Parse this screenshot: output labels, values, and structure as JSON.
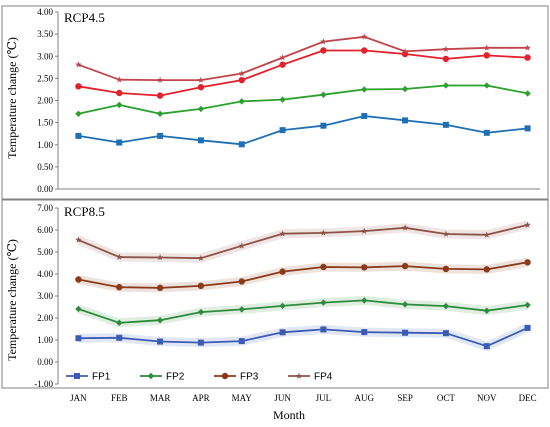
{
  "chart_data": {
    "shared": {
      "categories": [
        "JAN",
        "FEB",
        "MAR",
        "APR",
        "MAY",
        "JUN",
        "JUL",
        "AUG",
        "SEP",
        "OCT",
        "NOV",
        "DEC"
      ],
      "xlabel": "Month",
      "ylabel": "Temperature change (℃)",
      "legend": {
        "placement": "bottom-left inside lower panel",
        "entries": [
          "FP1",
          "FP2",
          "FP3",
          "FP4"
        ]
      }
    },
    "panels": [
      {
        "type": "line",
        "label": "RCP4.5",
        "ylim": [
          0.0,
          4.0
        ],
        "yticks": [
          "0.00",
          "0.50",
          "1.00",
          "1.50",
          "2.00",
          "2.50",
          "3.00",
          "3.50",
          "4.00"
        ],
        "ytick_values": [
          0,
          0.5,
          1,
          1.5,
          2,
          2.5,
          3,
          3.5,
          4
        ],
        "series": [
          {
            "name": "FP1",
            "color": "#1f6fb5",
            "marker": "square",
            "values": [
              1.2,
              1.05,
              1.2,
              1.1,
              1.01,
              1.33,
              1.43,
              1.65,
              1.55,
              1.45,
              1.27,
              1.37
            ]
          },
          {
            "name": "FP2",
            "color": "#2ca02c",
            "marker": "diamond",
            "values": [
              1.7,
              1.9,
              1.7,
              1.81,
              1.98,
              2.02,
              2.13,
              2.25,
              2.26,
              2.34,
              2.34,
              2.16
            ]
          },
          {
            "name": "FP3",
            "color": "#e3212b",
            "marker": "circle",
            "values": [
              2.32,
              2.17,
              2.11,
              2.3,
              2.46,
              2.81,
              3.13,
              3.13,
              3.05,
              2.94,
              3.02,
              2.97
            ]
          },
          {
            "name": "FP4",
            "color": "#c0454a",
            "marker": "star",
            "values": [
              2.81,
              2.47,
              2.46,
              2.46,
              2.61,
              2.97,
              3.33,
              3.44,
              3.11,
              3.16,
              3.19,
              3.19
            ]
          }
        ]
      },
      {
        "type": "line",
        "label": "RCP8.5",
        "ylim": [
          -1.0,
          7.0
        ],
        "yticks": [
          "-1.00",
          "0.00",
          "1.00",
          "2.00",
          "3.00",
          "4.00",
          "5.00",
          "6.00",
          "7.00"
        ],
        "ytick_values": [
          -1,
          0,
          1,
          2,
          3,
          4,
          5,
          6,
          7
        ],
        "series": [
          {
            "name": "FP1",
            "color": "#3b5bb5",
            "marker": "square",
            "values": [
              1.08,
              1.1,
              0.93,
              0.88,
              0.95,
              1.35,
              1.48,
              1.36,
              1.33,
              1.31,
              0.72,
              1.55
            ]
          },
          {
            "name": "FP2",
            "color": "#2e8b3e",
            "marker": "diamond",
            "values": [
              2.41,
              1.78,
              1.9,
              2.27,
              2.39,
              2.55,
              2.7,
              2.8,
              2.62,
              2.54,
              2.33,
              2.59
            ]
          },
          {
            "name": "FP3",
            "color": "#8b3a1a",
            "marker": "circle",
            "values": [
              3.75,
              3.4,
              3.37,
              3.46,
              3.66,
              4.11,
              4.32,
              4.3,
              4.36,
              4.23,
              4.21,
              4.53
            ]
          },
          {
            "name": "FP4",
            "color": "#8e5348",
            "marker": "star",
            "values": [
              5.55,
              4.77,
              4.75,
              4.72,
              5.28,
              5.83,
              5.87,
              5.95,
              6.1,
              5.82,
              5.78,
              6.23
            ]
          }
        ]
      }
    ]
  }
}
